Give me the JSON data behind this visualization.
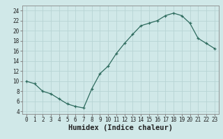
{
  "x": [
    0,
    1,
    2,
    3,
    4,
    5,
    6,
    7,
    8,
    9,
    10,
    11,
    12,
    13,
    14,
    15,
    16,
    17,
    18,
    19,
    20,
    21,
    22,
    23
  ],
  "y": [
    10,
    9.5,
    8,
    7.5,
    6.5,
    5.5,
    5,
    4.7,
    8.5,
    11.5,
    13,
    15.5,
    17.5,
    19.3,
    21,
    21.5,
    22,
    23,
    23.5,
    23,
    21.5,
    18.5,
    17.5,
    16.5
  ],
  "line_color": "#2e6b5e",
  "marker": "+",
  "marker_color": "#2e6b5e",
  "bg_color": "#d0e8e8",
  "grid_color": "#b8d4d4",
  "xlabel": "Humidex (Indice chaleur)",
  "xlim": [
    -0.5,
    23.5
  ],
  "ylim": [
    3.5,
    25
  ],
  "xticks": [
    0,
    1,
    2,
    3,
    4,
    5,
    6,
    7,
    8,
    9,
    10,
    11,
    12,
    13,
    14,
    15,
    16,
    17,
    18,
    19,
    20,
    21,
    22,
    23
  ],
  "yticks": [
    4,
    6,
    8,
    10,
    12,
    14,
    16,
    18,
    20,
    22,
    24
  ],
  "tick_fontsize": 5.5,
  "label_fontsize": 7.5
}
